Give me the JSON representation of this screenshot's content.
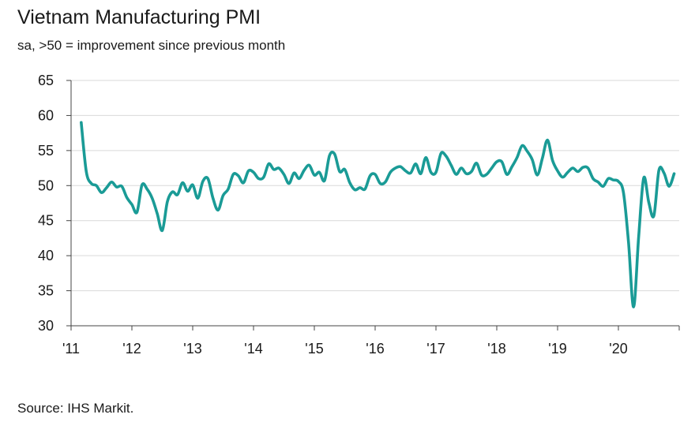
{
  "header": {
    "title": "Vietnam Manufacturing PMI",
    "subtitle": "sa, >50 = improvement since previous month"
  },
  "footer": {
    "source": "Source: IHS Markit."
  },
  "colors": {
    "line": "#1a9b96",
    "grid": "#d9d9d9",
    "axis": "#444444"
  },
  "chart_data": {
    "type": "line",
    "title": "Vietnam Manufacturing PMI",
    "subtitle": "sa, >50 = improvement since previous month",
    "xlabel": "",
    "ylabel": "",
    "ylim": [
      30,
      65
    ],
    "yticks": [
      30,
      35,
      40,
      45,
      50,
      55,
      60,
      65
    ],
    "xlim": [
      2011.0,
      2021.0
    ],
    "xticks": [
      {
        "value": 2011,
        "label": "'11"
      },
      {
        "value": 2012,
        "label": "'12"
      },
      {
        "value": 2013,
        "label": "'13"
      },
      {
        "value": 2014,
        "label": "'14"
      },
      {
        "value": 2015,
        "label": "'15"
      },
      {
        "value": 2016,
        "label": "'16"
      },
      {
        "value": 2017,
        "label": "'17"
      },
      {
        "value": 2018,
        "label": "'18"
      },
      {
        "value": 2019,
        "label": "'19"
      },
      {
        "value": 2020,
        "label": "'20"
      }
    ],
    "grid": "horizontal",
    "legend": "none",
    "series": [
      {
        "start": "2011-03",
        "frequency": "monthly",
        "values": [
          59.0,
          52.0,
          50.3,
          50.0,
          49.0,
          49.7,
          50.5,
          49.8,
          49.9,
          48.3,
          47.3,
          46.2,
          50.1,
          49.5,
          48.2,
          46.0,
          43.6,
          47.7,
          49.1,
          48.7,
          50.4,
          49.2,
          50.1,
          48.2,
          50.6,
          51.0,
          48.2,
          46.5,
          48.6,
          49.5,
          51.6,
          51.4,
          50.4,
          52.1,
          51.9,
          51.0,
          51.2,
          53.1,
          52.3,
          52.5,
          51.6,
          50.3,
          51.8,
          51.0,
          52.2,
          52.9,
          51.5,
          51.9,
          50.7,
          54.3,
          54.5,
          52.0,
          52.3,
          50.4,
          49.4,
          49.7,
          49.5,
          51.4,
          51.6,
          50.3,
          50.5,
          51.9,
          52.5,
          52.7,
          52.1,
          51.8,
          53.1,
          51.7,
          54.0,
          51.9,
          51.9,
          54.6,
          54.2,
          52.9,
          51.6,
          52.5,
          51.7,
          52.0,
          53.2,
          51.5,
          51.6,
          52.5,
          53.4,
          53.4,
          51.6,
          52.7,
          54.0,
          55.7,
          54.9,
          53.7,
          51.5,
          53.9,
          56.5,
          53.6,
          52.1,
          51.2,
          51.9,
          52.5,
          52.0,
          52.6,
          52.5,
          51.0,
          50.5,
          49.9,
          51.0,
          50.8,
          50.6,
          49.0,
          41.9,
          32.7,
          42.7,
          51.1,
          47.6,
          45.7,
          52.2,
          51.8,
          49.9,
          51.7
        ]
      }
    ]
  }
}
